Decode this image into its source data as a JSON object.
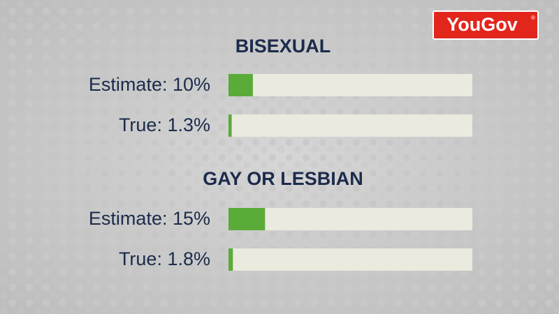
{
  "logo": {
    "text": "YouGov",
    "mark": "®"
  },
  "chart_data": [
    {
      "type": "bar",
      "title": "BISEXUAL",
      "values": [
        10,
        1.3
      ],
      "value_labels": [
        "Estimate: 10%",
        "True: 1.3%"
      ],
      "color": "#5aab37",
      "track_color": "#ebeadf",
      "xlim": [
        0,
        100
      ]
    },
    {
      "type": "bar",
      "title": "GAY OR LESBIAN",
      "values": [
        15,
        1.8
      ],
      "value_labels": [
        "Estimate: 15%",
        "True: 1.8%"
      ],
      "color": "#5aab37",
      "track_color": "#ebeadf",
      "xlim": [
        0,
        100
      ]
    }
  ]
}
